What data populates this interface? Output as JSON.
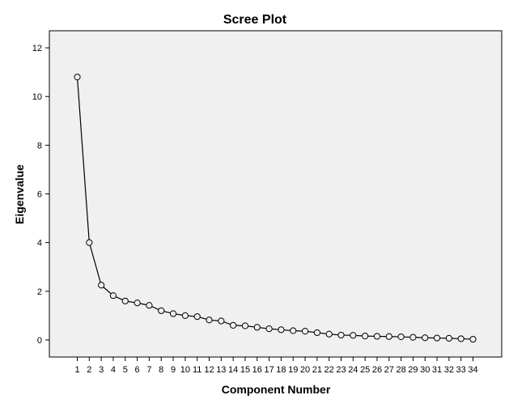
{
  "chart_data": {
    "type": "line",
    "title": "Scree Plot",
    "xlabel": "Component Number",
    "ylabel": "Eigenvalue",
    "x": [
      1,
      2,
      3,
      4,
      5,
      6,
      7,
      8,
      9,
      10,
      11,
      12,
      13,
      14,
      15,
      16,
      17,
      18,
      19,
      20,
      21,
      22,
      23,
      24,
      25,
      26,
      27,
      28,
      29,
      30,
      31,
      32,
      33,
      34
    ],
    "y": [
      10.8,
      4.0,
      2.25,
      1.82,
      1.6,
      1.52,
      1.42,
      1.2,
      1.08,
      1.0,
      0.96,
      0.82,
      0.78,
      0.6,
      0.58,
      0.52,
      0.46,
      0.42,
      0.38,
      0.36,
      0.3,
      0.24,
      0.2,
      0.19,
      0.16,
      0.15,
      0.14,
      0.13,
      0.11,
      0.09,
      0.08,
      0.07,
      0.05,
      0.03
    ],
    "ylim": [
      -0.7,
      12.7
    ],
    "yticks": [
      "0",
      "2",
      "4",
      "6",
      "8",
      "10",
      "12"
    ],
    "xticks": [
      "1",
      "2",
      "3",
      "4",
      "5",
      "6",
      "7",
      "8",
      "9",
      "10",
      "11",
      "12",
      "13",
      "14",
      "15",
      "16",
      "17",
      "18",
      "19",
      "20",
      "21",
      "22",
      "23",
      "24",
      "25",
      "26",
      "27",
      "28",
      "29",
      "30",
      "31",
      "32",
      "33",
      "34"
    ],
    "grid": false,
    "colors": {
      "plot_bg": "#f0f0f0",
      "line": "#000000",
      "marker_face": "#f0f0f0"
    }
  }
}
